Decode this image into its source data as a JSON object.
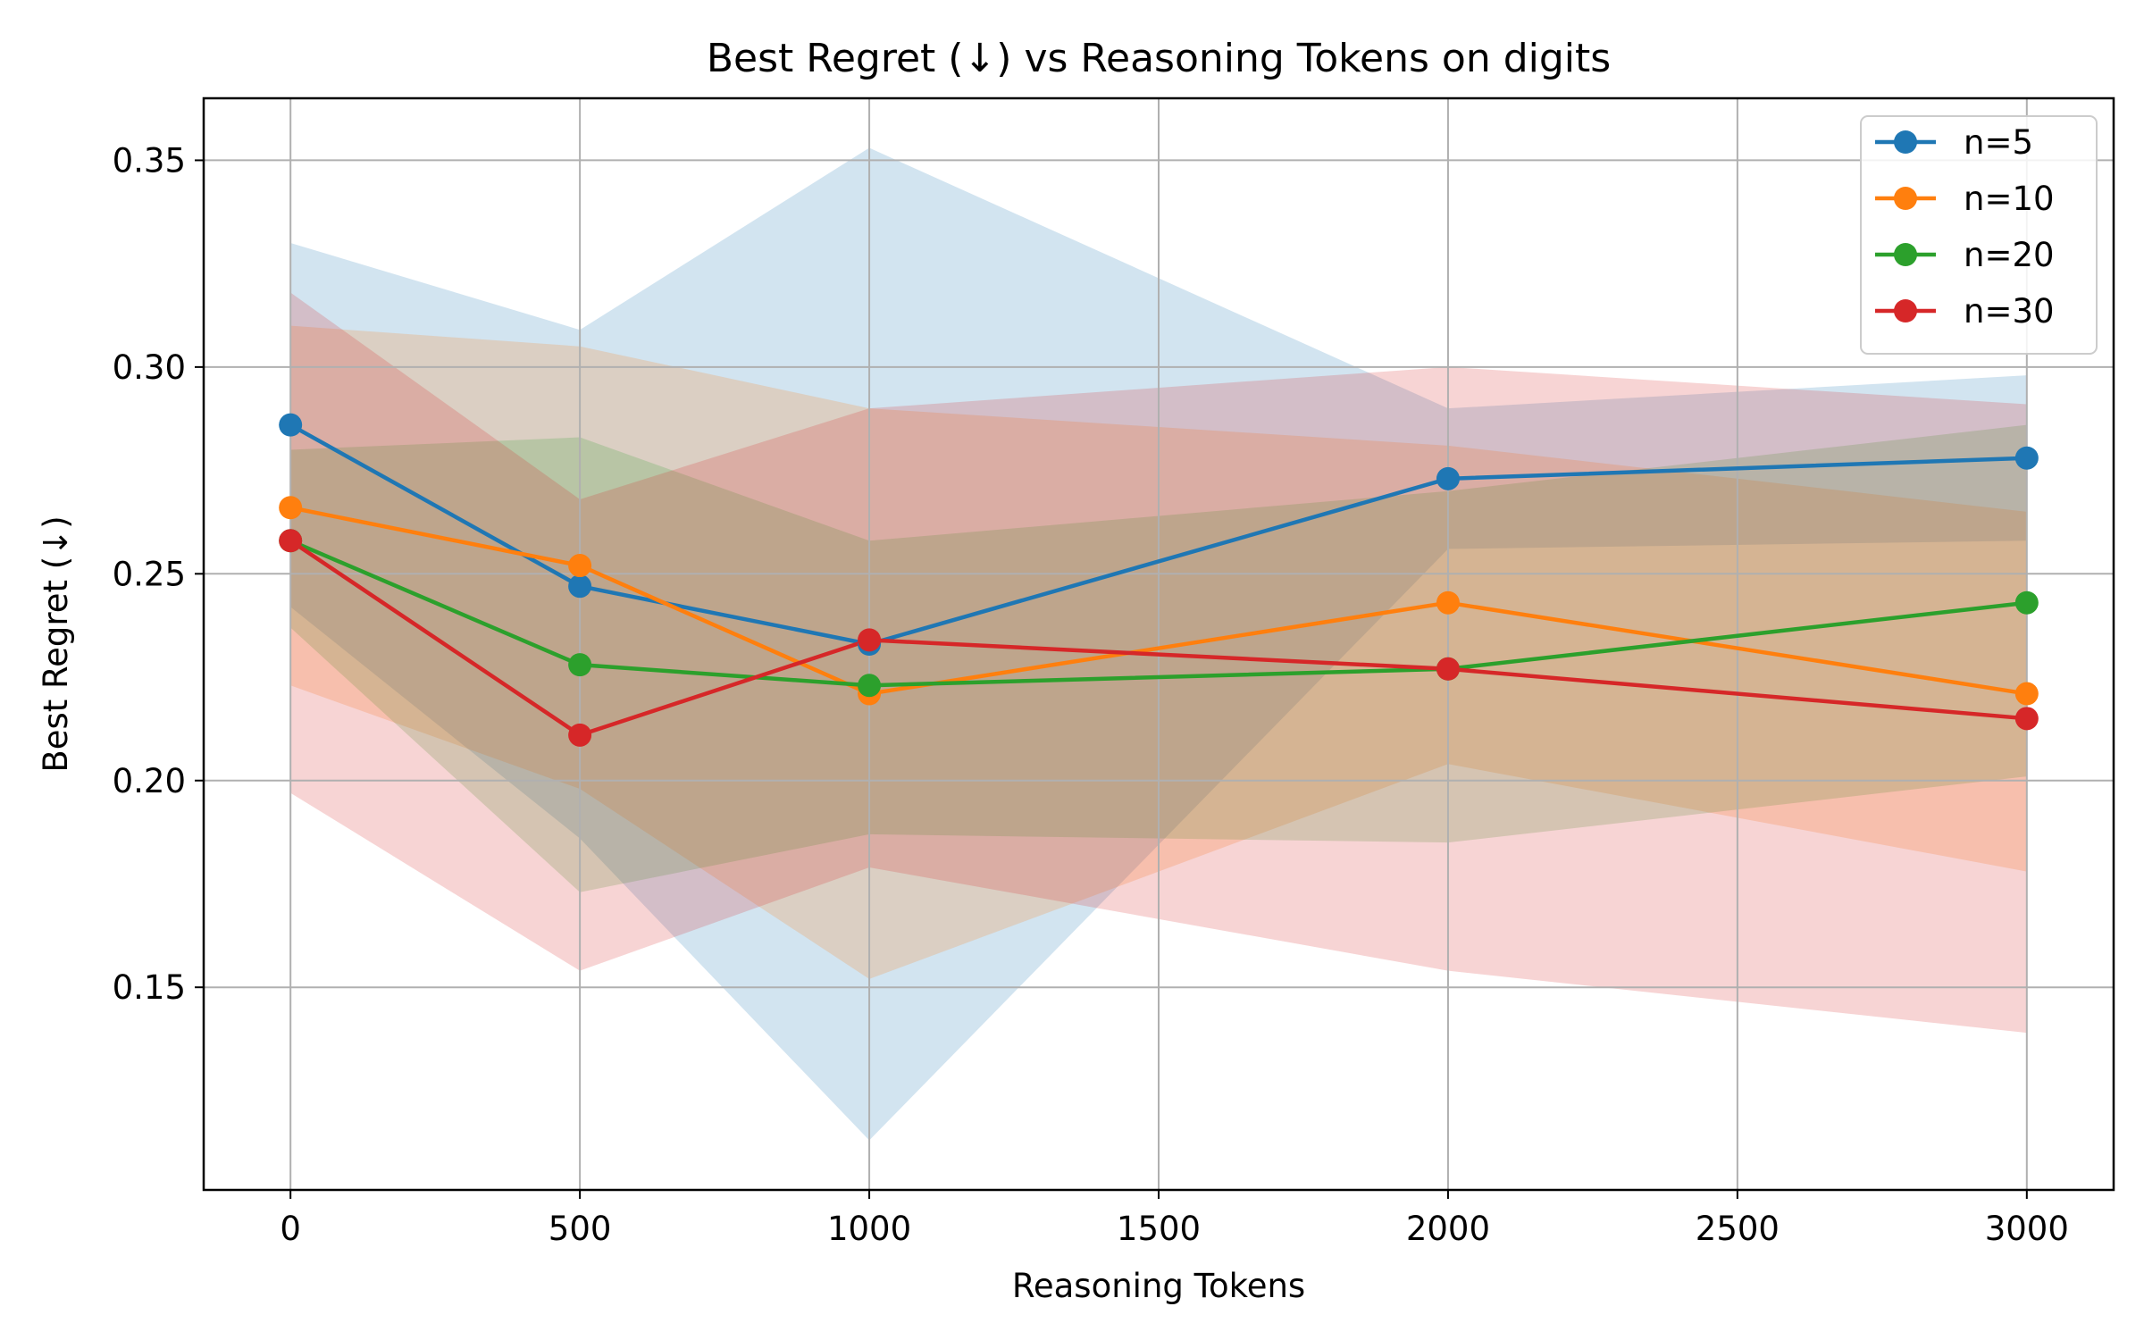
{
  "chart_data": {
    "type": "line",
    "title": "Best Regret (↓) vs Reasoning Tokens on digits",
    "xlabel": "Reasoning Tokens",
    "ylabel": "Best Regret (↓)",
    "x": [
      0,
      500,
      1000,
      2000,
      3000
    ],
    "xlim": [
      -150,
      3150
    ],
    "ylim": [
      0.101,
      0.365
    ],
    "xticks": [
      0,
      500,
      1000,
      1500,
      2000,
      2500,
      3000
    ],
    "yticks": [
      0.15,
      0.2,
      0.25,
      0.3,
      0.35
    ],
    "xtick_labels": [
      "0",
      "500",
      "1000",
      "1500",
      "2000",
      "2500",
      "3000"
    ],
    "ytick_labels": [
      "0.15",
      "0.20",
      "0.25",
      "0.30",
      "0.35"
    ],
    "grid": true,
    "legend_position": "top-right",
    "series": [
      {
        "name": "n=5",
        "color": "#1f77b4",
        "values": [
          0.286,
          0.247,
          0.233,
          0.273,
          0.278
        ],
        "lower": [
          0.242,
          0.186,
          0.113,
          0.256,
          0.258
        ],
        "upper": [
          0.33,
          0.309,
          0.353,
          0.29,
          0.298
        ]
      },
      {
        "name": "n=10",
        "color": "#ff7f0e",
        "values": [
          0.266,
          0.252,
          0.221,
          0.243,
          0.221
        ],
        "lower": [
          0.223,
          0.198,
          0.152,
          0.204,
          0.178
        ],
        "upper": [
          0.31,
          0.305,
          0.29,
          0.281,
          0.265
        ]
      },
      {
        "name": "n=20",
        "color": "#2ca02c",
        "values": [
          0.258,
          0.228,
          0.223,
          0.227,
          0.243
        ],
        "lower": [
          0.237,
          0.173,
          0.187,
          0.185,
          0.201
        ],
        "upper": [
          0.28,
          0.283,
          0.258,
          0.27,
          0.286
        ]
      },
      {
        "name": "n=30",
        "color": "#d62728",
        "values": [
          0.258,
          0.211,
          0.234,
          0.227,
          0.215
        ],
        "lower": [
          0.197,
          0.154,
          0.179,
          0.154,
          0.139
        ],
        "upper": [
          0.318,
          0.268,
          0.29,
          0.3,
          0.291
        ]
      }
    ]
  }
}
